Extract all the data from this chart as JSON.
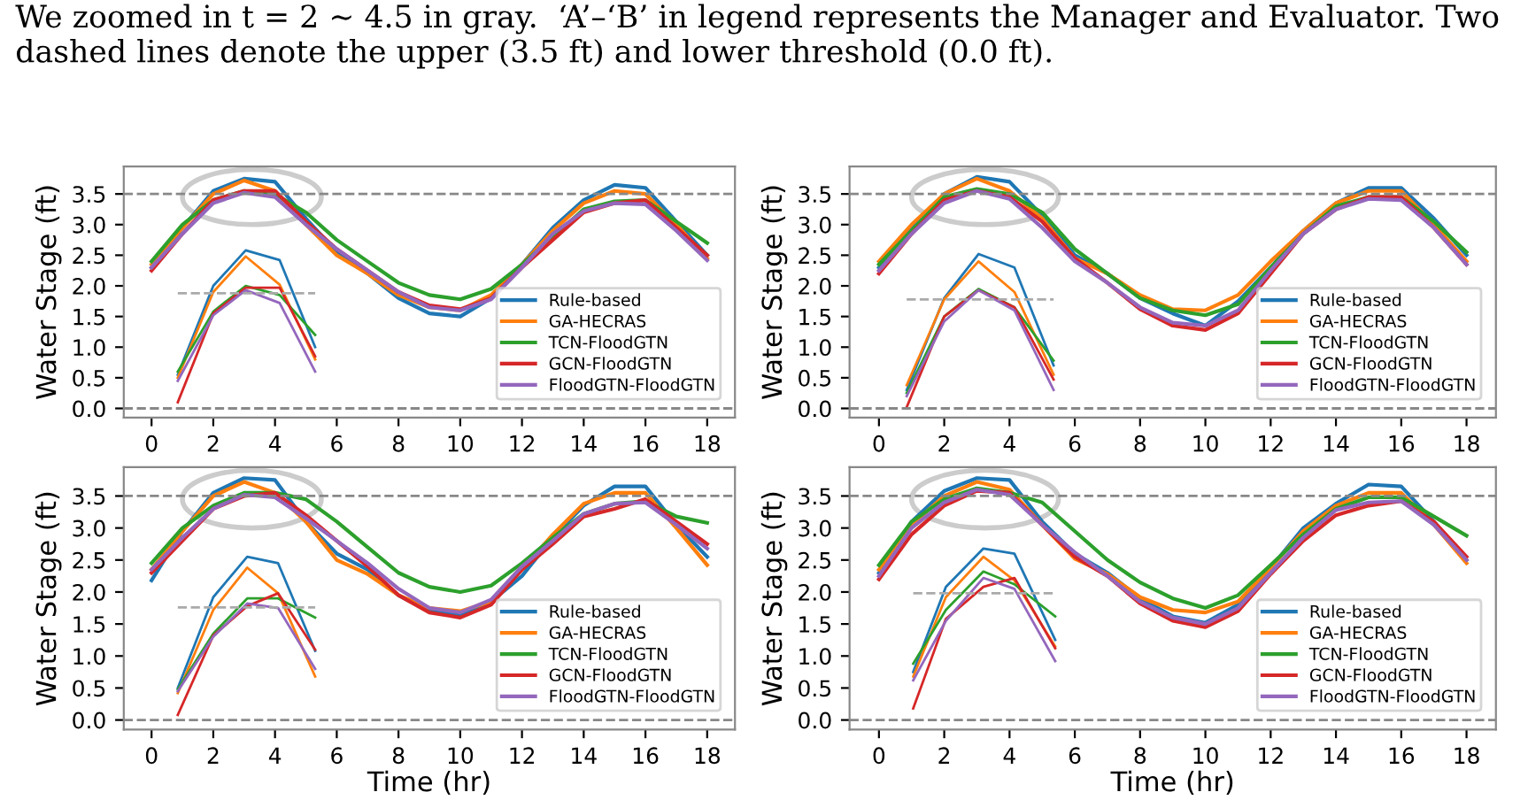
{
  "chart_data": [
    {
      "type": "line",
      "ylabel": "Water Stage (ft)",
      "annotations": [
        "We zoomed in t = 2 ∼ 4.5 in gray.  ‘A’–‘B’ in legend represents the Manager and Evaluator. Two dashed lines denote the upper (3.5 ft) and lower threshold (0.0 ft)."
      ],
      "x": [
        0,
        1,
        2,
        3,
        4,
        5,
        6,
        7,
        8,
        9,
        10,
        11,
        12,
        13,
        14,
        15,
        16,
        17,
        18
      ],
      "xlim": [
        -0.9,
        18.9
      ],
      "xticks": [
        0,
        2,
        4,
        6,
        8,
        10,
        12,
        14,
        16,
        18
      ],
      "ylim": [
        -0.15,
        3.95
      ],
      "yticks": [
        {
          "value": 0,
          "label": "0.0"
        },
        0.5,
        {
          "value": 1,
          "label": "1.0"
        },
        1.5,
        {
          "value": 2,
          "label": "2.0"
        },
        2.5,
        {
          "value": 3,
          "label": "3.0"
        },
        3.5
      ],
      "legend": "bottom right",
      "grid": false,
      "ref_lines": [
        {
          "axis": "y",
          "value": 3.5,
          "color": "#888888",
          "line_style": "dashed"
        },
        {
          "axis": "y",
          "value": 0.0,
          "color": "#888888",
          "line_style": "dashed"
        }
      ],
      "series": [
        {
          "name": "Rule-based",
          "color": "#1f77b4",
          "values": [
            2.3,
            2.95,
            3.55,
            3.75,
            3.7,
            3.1,
            2.55,
            2.2,
            1.8,
            1.55,
            1.5,
            1.8,
            2.35,
            2.95,
            3.4,
            3.65,
            3.6,
            3.05,
            2.5
          ]
        },
        {
          "name": "GA-HECRAS",
          "color": "#ff7f0e",
          "values": [
            2.35,
            2.95,
            3.5,
            3.72,
            3.55,
            3.0,
            2.5,
            2.2,
            1.85,
            1.65,
            1.6,
            1.85,
            2.35,
            2.9,
            3.35,
            3.55,
            3.5,
            3.0,
            2.45
          ]
        },
        {
          "name": "TCN-FloodGTN",
          "color": "#2ca02c",
          "values": [
            2.4,
            3.0,
            3.4,
            3.55,
            3.5,
            3.2,
            2.75,
            2.4,
            2.05,
            1.85,
            1.78,
            1.95,
            2.35,
            2.8,
            3.25,
            3.38,
            3.4,
            3.05,
            2.7
          ]
        },
        {
          "name": "GCN-FloodGTN",
          "color": "#d62728",
          "values": [
            2.25,
            2.85,
            3.4,
            3.55,
            3.55,
            3.05,
            2.6,
            2.25,
            1.9,
            1.68,
            1.62,
            1.8,
            2.3,
            2.75,
            3.2,
            3.35,
            3.4,
            2.95,
            2.5
          ]
        },
        {
          "name": "FloodGTN-FloodGTN",
          "color": "#9467bd",
          "values": [
            2.3,
            2.85,
            3.35,
            3.52,
            3.45,
            3.0,
            2.6,
            2.25,
            1.9,
            1.65,
            1.6,
            1.78,
            2.3,
            2.85,
            3.22,
            3.35,
            3.33,
            2.9,
            2.42
          ]
        },
        {
          "color": "#1f77b4",
          "x": [
            0.85,
            2,
            3.05,
            4.15,
            5.3
          ],
          "values": [
            0.55,
            2.0,
            2.58,
            2.42,
            1.0
          ]
        },
        {
          "color": "#ff7f0e",
          "x": [
            0.85,
            2,
            3.05,
            4.15,
            5.3
          ],
          "values": [
            0.5,
            1.9,
            2.48,
            2.02,
            0.8
          ]
        },
        {
          "color": "#2ca02c",
          "x": [
            0.85,
            2,
            3.05,
            4.15,
            5.3
          ],
          "values": [
            0.6,
            1.58,
            2.0,
            1.85,
            1.2
          ]
        },
        {
          "color": "#d62728",
          "x": [
            0.85,
            2,
            3.05,
            4.15,
            5.3
          ],
          "values": [
            0.1,
            1.55,
            1.97,
            1.97,
            0.85
          ]
        },
        {
          "color": "#9467bd",
          "x": [
            0.85,
            2,
            3.05,
            4.15,
            5.3
          ],
          "values": [
            0.45,
            1.52,
            1.93,
            1.72,
            0.6
          ]
        },
        {
          "color": "#aaaaaa",
          "line_style": "dashed",
          "x": [
            0.85,
            5.3
          ],
          "values": [
            1.88,
            1.88
          ]
        }
      ]
    },
    {
      "type": "line",
      "ylabel": "Water Stage (ft)",
      "x": [
        0,
        1,
        2,
        3,
        4,
        5,
        6,
        7,
        8,
        9,
        10,
        11,
        12,
        13,
        14,
        15,
        16,
        17,
        18
      ],
      "xlim": [
        -0.9,
        18.9
      ],
      "xticks": [
        0,
        2,
        4,
        6,
        8,
        10,
        12,
        14,
        16,
        18
      ],
      "ylim": [
        -0.15,
        3.95
      ],
      "yticks": [
        {
          "value": 0,
          "label": "0.0"
        },
        0.5,
        {
          "value": 1,
          "label": "1.0"
        },
        1.5,
        {
          "value": 2,
          "label": "2.0"
        },
        2.5,
        {
          "value": 3,
          "label": "3.0"
        },
        3.5
      ],
      "legend": "bottom right",
      "grid": false,
      "ref_lines": [
        {
          "axis": "y",
          "value": 3.5,
          "color": "#888888",
          "line_style": "dashed"
        },
        {
          "axis": "y",
          "value": 0.0,
          "color": "#888888",
          "line_style": "dashed"
        }
      ],
      "series": [
        {
          "name": "Rule-based",
          "color": "#1f77b4",
          "values": [
            2.3,
            2.95,
            3.5,
            3.78,
            3.7,
            3.15,
            2.5,
            2.2,
            1.8,
            1.55,
            1.35,
            1.75,
            2.3,
            2.9,
            3.35,
            3.6,
            3.6,
            3.1,
            2.5
          ]
        },
        {
          "name": "GA-HECRAS",
          "color": "#ff7f0e",
          "values": [
            2.4,
            3.0,
            3.5,
            3.75,
            3.55,
            3.1,
            2.45,
            2.2,
            1.85,
            1.62,
            1.6,
            1.85,
            2.4,
            2.9,
            3.35,
            3.55,
            3.55,
            3.0,
            2.4
          ]
        },
        {
          "name": "TCN-FloodGTN",
          "color": "#2ca02c",
          "values": [
            2.35,
            2.9,
            3.45,
            3.58,
            3.5,
            3.2,
            2.6,
            2.2,
            1.8,
            1.6,
            1.52,
            1.7,
            2.3,
            2.85,
            3.3,
            3.45,
            3.45,
            3.05,
            2.55
          ]
        },
        {
          "name": "GCN-FloodGTN",
          "color": "#d62728",
          "values": [
            2.2,
            2.85,
            3.4,
            3.55,
            3.45,
            3.05,
            2.45,
            2.05,
            1.62,
            1.35,
            1.28,
            1.55,
            2.2,
            2.85,
            3.25,
            3.45,
            3.45,
            2.95,
            2.35
          ]
        },
        {
          "name": "FloodGTN-FloodGTN",
          "color": "#9467bd",
          "values": [
            2.25,
            2.85,
            3.35,
            3.55,
            3.42,
            2.95,
            2.4,
            2.05,
            1.65,
            1.4,
            1.35,
            1.6,
            2.25,
            2.85,
            3.25,
            3.42,
            3.4,
            2.95,
            2.35
          ]
        },
        {
          "color": "#1f77b4",
          "x": [
            0.85,
            2,
            3.05,
            4.15,
            5.35
          ],
          "values": [
            0.3,
            1.8,
            2.52,
            2.3,
            0.7
          ]
        },
        {
          "color": "#ff7f0e",
          "x": [
            0.85,
            2,
            3.05,
            4.15,
            5.35
          ],
          "values": [
            0.38,
            1.78,
            2.4,
            1.9,
            0.55
          ]
        },
        {
          "color": "#2ca02c",
          "x": [
            0.85,
            2,
            3.05,
            4.15,
            5.35
          ],
          "values": [
            0.25,
            1.5,
            1.95,
            1.65,
            0.78
          ]
        },
        {
          "color": "#d62728",
          "x": [
            0.85,
            2,
            3.05,
            4.15,
            5.35
          ],
          "values": [
            0.02,
            1.5,
            1.93,
            1.65,
            0.47
          ]
        },
        {
          "color": "#9467bd",
          "x": [
            0.85,
            2,
            3.05,
            4.15,
            5.35
          ],
          "values": [
            0.2,
            1.42,
            1.93,
            1.6,
            0.3
          ]
        },
        {
          "color": "#aaaaaa",
          "line_style": "dashed",
          "x": [
            0.85,
            5.35
          ],
          "values": [
            1.78,
            1.78
          ]
        }
      ]
    },
    {
      "type": "line",
      "xlabel": "Time (hr)",
      "ylabel": "Water Stage (ft)",
      "x": [
        0,
        1,
        2,
        3,
        4,
        5,
        6,
        7,
        8,
        9,
        10,
        11,
        12,
        13,
        14,
        15,
        16,
        17,
        18
      ],
      "xlim": [
        -0.9,
        18.9
      ],
      "xticks": [
        0,
        2,
        4,
        6,
        8,
        10,
        12,
        14,
        16,
        18
      ],
      "ylim": [
        -0.15,
        3.95
      ],
      "yticks": [
        {
          "value": 0,
          "label": "0.0"
        },
        0.5,
        {
          "value": 1,
          "label": "1.0"
        },
        1.5,
        {
          "value": 2,
          "label": "2.0"
        },
        2.5,
        {
          "value": 3,
          "label": "3.0"
        },
        3.5
      ],
      "legend": "bottom right",
      "grid": false,
      "ref_lines": [
        {
          "axis": "y",
          "value": 3.5,
          "color": "#888888",
          "line_style": "dashed"
        },
        {
          "axis": "y",
          "value": 0.0,
          "color": "#888888",
          "line_style": "dashed"
        }
      ],
      "series": [
        {
          "name": "Rule-based",
          "color": "#1f77b4",
          "values": [
            2.18,
            2.95,
            3.55,
            3.78,
            3.75,
            3.1,
            2.6,
            2.35,
            1.95,
            1.7,
            1.65,
            1.85,
            2.25,
            2.85,
            3.35,
            3.65,
            3.65,
            3.05,
            2.55
          ]
        },
        {
          "name": "GA-HECRAS",
          "color": "#ff7f0e",
          "values": [
            2.35,
            2.95,
            3.5,
            3.72,
            3.55,
            3.1,
            2.5,
            2.28,
            1.95,
            1.75,
            1.7,
            1.85,
            2.35,
            2.9,
            3.38,
            3.55,
            3.55,
            3.0,
            2.42
          ]
        },
        {
          "name": "TCN-FloodGTN",
          "color": "#2ca02c",
          "values": [
            2.45,
            3.0,
            3.35,
            3.55,
            3.55,
            3.45,
            3.1,
            2.7,
            2.3,
            2.08,
            2.0,
            2.1,
            2.45,
            2.85,
            3.22,
            3.38,
            3.42,
            3.18,
            3.08
          ]
        },
        {
          "name": "GCN-FloodGTN",
          "color": "#d62728",
          "values": [
            2.3,
            2.8,
            3.3,
            3.5,
            3.55,
            3.2,
            2.8,
            2.4,
            1.95,
            1.68,
            1.6,
            1.8,
            2.35,
            2.75,
            3.18,
            3.3,
            3.45,
            3.1,
            2.75
          ]
        },
        {
          "name": "FloodGTN-FloodGTN",
          "color": "#9467bd",
          "values": [
            2.35,
            2.85,
            3.3,
            3.52,
            3.48,
            3.15,
            2.8,
            2.45,
            2.05,
            1.75,
            1.68,
            1.88,
            2.4,
            2.8,
            3.22,
            3.38,
            3.4,
            3.05,
            2.68
          ]
        },
        {
          "color": "#1f77b4",
          "x": [
            0.85,
            2,
            3.1,
            4.1,
            5.3
          ],
          "values": [
            0.5,
            1.92,
            2.55,
            2.45,
            1.08
          ]
        },
        {
          "color": "#ff7f0e",
          "x": [
            0.85,
            2,
            3.1,
            4.1,
            5.3
          ],
          "values": [
            0.42,
            1.72,
            2.38,
            1.98,
            0.68
          ]
        },
        {
          "color": "#2ca02c",
          "x": [
            0.85,
            2,
            3.1,
            4.1,
            5.3
          ],
          "values": [
            0.48,
            1.35,
            1.9,
            1.9,
            1.6
          ]
        },
        {
          "color": "#d62728",
          "x": [
            0.85,
            2,
            3.1,
            4.1,
            5.3
          ],
          "values": [
            0.08,
            1.32,
            1.78,
            1.98,
            1.1
          ]
        },
        {
          "color": "#9467bd",
          "x": [
            0.85,
            2,
            3.1,
            4.1,
            5.3
          ],
          "values": [
            0.45,
            1.3,
            1.82,
            1.75,
            0.8
          ]
        },
        {
          "color": "#aaaaaa",
          "line_style": "dashed",
          "x": [
            0.85,
            5.3
          ],
          "values": [
            1.76,
            1.76
          ]
        }
      ]
    },
    {
      "type": "line",
      "xlabel": "Time (hr)",
      "ylabel": "Water Stage (ft)",
      "x": [
        0,
        1,
        2,
        3,
        4,
        5,
        6,
        7,
        8,
        9,
        10,
        11,
        12,
        13,
        14,
        15,
        16,
        17,
        18
      ],
      "xlim": [
        -0.9,
        18.9
      ],
      "xticks": [
        0,
        2,
        4,
        6,
        8,
        10,
        12,
        14,
        16,
        18
      ],
      "ylim": [
        -0.15,
        3.95
      ],
      "yticks": [
        {
          "value": 0,
          "label": "0.0"
        },
        0.5,
        {
          "value": 1,
          "label": "1.0"
        },
        1.5,
        {
          "value": 2,
          "label": "2.0"
        },
        2.5,
        {
          "value": 3,
          "label": "3.0"
        },
        3.5
      ],
      "legend": "bottom right",
      "grid": false,
      "ref_lines": [
        {
          "axis": "y",
          "value": 3.5,
          "color": "#888888",
          "line_style": "dashed"
        },
        {
          "axis": "y",
          "value": 0.0,
          "color": "#888888",
          "line_style": "dashed"
        }
      ],
      "series": [
        {
          "name": "Rule-based",
          "color": "#1f77b4",
          "values": [
            2.3,
            3.1,
            3.58,
            3.78,
            3.75,
            3.1,
            2.6,
            2.3,
            1.9,
            1.62,
            1.52,
            1.8,
            2.38,
            3.0,
            3.38,
            3.68,
            3.65,
            3.1,
            2.5
          ]
        },
        {
          "name": "GA-HECRAS",
          "color": "#ff7f0e",
          "values": [
            2.35,
            3.05,
            3.5,
            3.72,
            3.6,
            3.05,
            2.52,
            2.28,
            1.92,
            1.72,
            1.68,
            1.85,
            2.38,
            2.95,
            3.35,
            3.55,
            3.55,
            3.05,
            2.45
          ]
        },
        {
          "name": "TCN-FloodGTN",
          "color": "#2ca02c",
          "values": [
            2.42,
            3.1,
            3.45,
            3.62,
            3.55,
            3.4,
            2.95,
            2.5,
            2.15,
            1.9,
            1.75,
            1.95,
            2.42,
            2.9,
            3.3,
            3.48,
            3.48,
            3.18,
            2.88
          ]
        },
        {
          "name": "GCN-FloodGTN",
          "color": "#d62728",
          "values": [
            2.2,
            2.9,
            3.35,
            3.58,
            3.55,
            3.05,
            2.55,
            2.25,
            1.82,
            1.55,
            1.45,
            1.7,
            2.28,
            2.8,
            3.2,
            3.35,
            3.42,
            3.1,
            2.55
          ]
        },
        {
          "name": "FloodGTN-FloodGTN",
          "color": "#9467bd",
          "values": [
            2.25,
            3.0,
            3.4,
            3.6,
            3.52,
            3.05,
            2.62,
            2.25,
            1.85,
            1.6,
            1.5,
            1.75,
            2.3,
            2.85,
            3.28,
            3.4,
            3.42,
            3.05,
            2.5
          ]
        },
        {
          "color": "#1f77b4",
          "x": [
            1.05,
            2.05,
            3.2,
            4.15,
            5.4
          ],
          "values": [
            0.75,
            2.08,
            2.68,
            2.6,
            1.25
          ]
        },
        {
          "color": "#ff7f0e",
          "x": [
            1.05,
            2.05,
            3.2,
            4.15,
            5.4
          ],
          "values": [
            0.68,
            1.92,
            2.55,
            2.18,
            1.15
          ]
        },
        {
          "color": "#2ca02c",
          "x": [
            1.05,
            2.05,
            3.2,
            4.15,
            5.4
          ],
          "values": [
            0.88,
            1.72,
            2.32,
            2.12,
            1.62
          ]
        },
        {
          "color": "#d62728",
          "x": [
            1.05,
            2.05,
            3.2,
            4.15,
            5.4
          ],
          "values": [
            0.18,
            1.58,
            2.08,
            2.22,
            1.12
          ]
        },
        {
          "color": "#9467bd",
          "x": [
            1.05,
            2.05,
            3.2,
            4.15,
            5.4
          ],
          "values": [
            0.62,
            1.55,
            2.22,
            2.05,
            0.92
          ]
        },
        {
          "color": "#aaaaaa",
          "line_style": "dashed",
          "x": [
            1.05,
            5.4
          ],
          "values": [
            1.98,
            1.98
          ]
        }
      ]
    }
  ]
}
